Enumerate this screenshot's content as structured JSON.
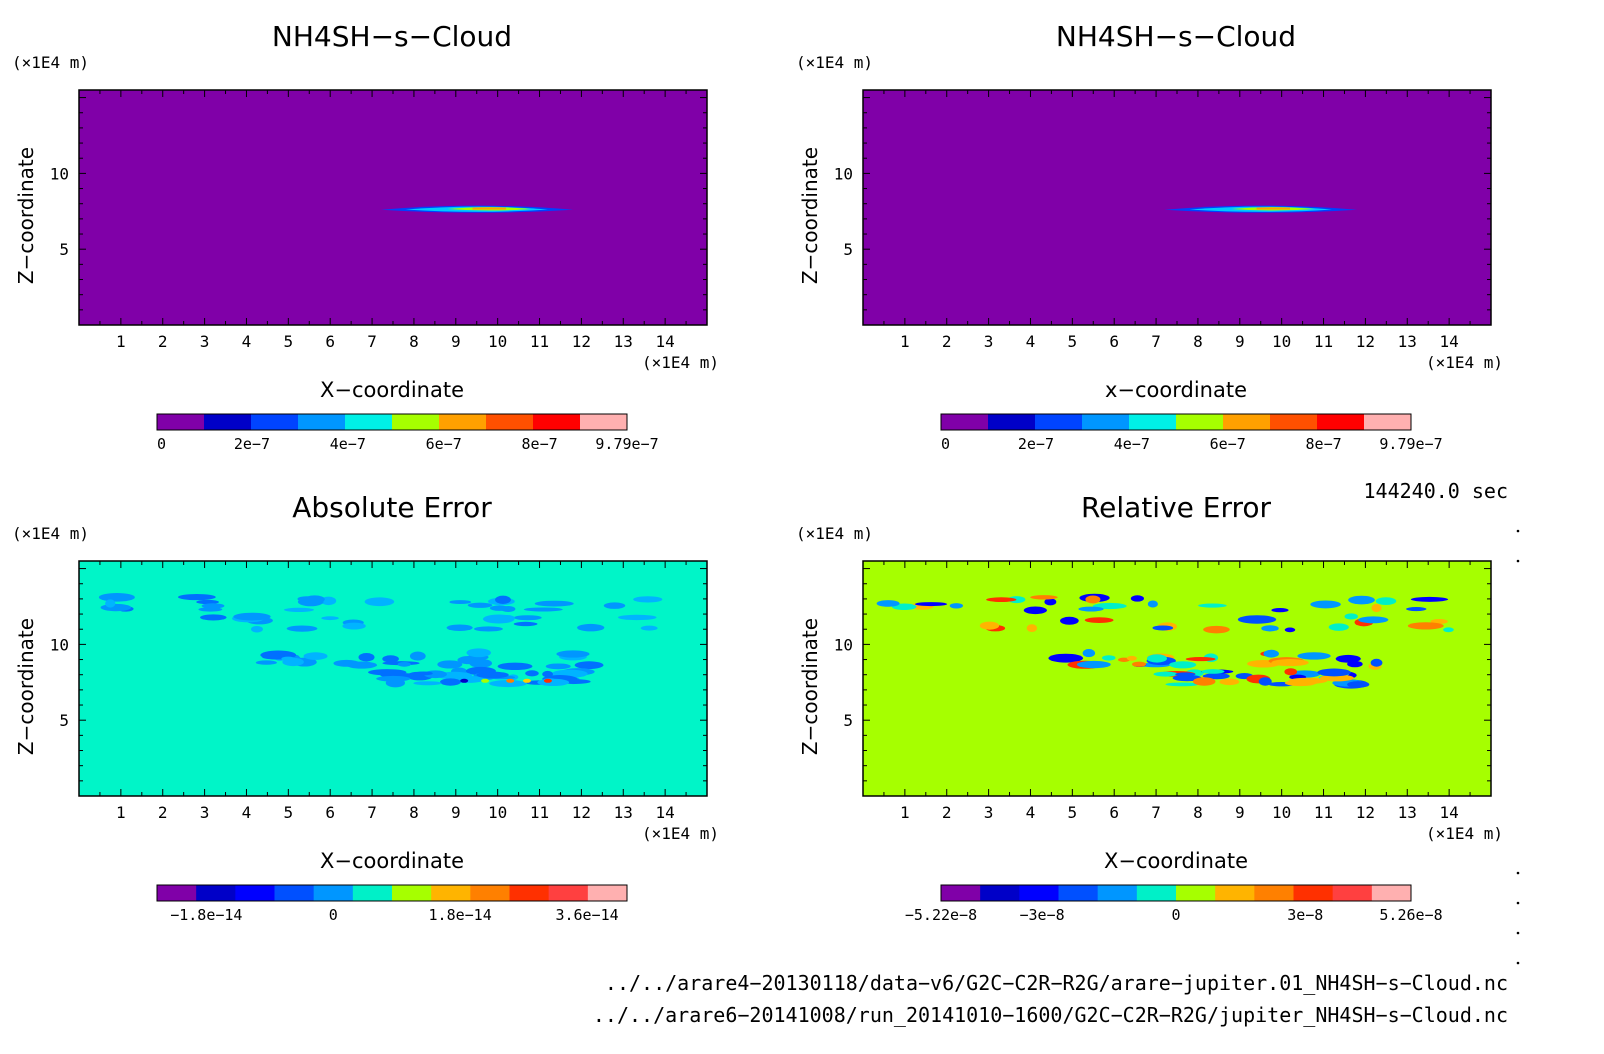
{
  "chart_data": [
    {
      "type": "heatmap",
      "title": "NH4SH−s−Cloud",
      "xlabel": "X−coordinate",
      "ylabel": "Z−coordinate",
      "unit_y": "(×1E4 m)",
      "unit_x": "(×1E4 m)",
      "x_ticks": [
        "1",
        "2",
        "3",
        "4",
        "5",
        "6",
        "7",
        "8",
        "9",
        "10",
        "11",
        "12",
        "13",
        "14"
      ],
      "y_ticks": [
        "10",
        "5"
      ],
      "background_color": "#8000a8",
      "colorbar_labels": [
        "0",
        "2e−7",
        "4e−7",
        "6e−7",
        "8e−7",
        "9.79e−7"
      ],
      "colorbar_colors": [
        "#8000a8",
        "#0000c8",
        "#0044ff",
        "#0096ff",
        "#00f0e6",
        "#a6ff00",
        "#ffa000",
        "#ff5000",
        "#ff0000",
        "#ffb0b0"
      ]
    },
    {
      "type": "heatmap",
      "title": "NH4SH−s−Cloud",
      "xlabel": "x−coordinate",
      "ylabel": "Z−coordinate",
      "unit_y": "(×1E4 m)",
      "unit_x": "(×1E4 m)",
      "x_ticks": [
        "1",
        "2",
        "3",
        "4",
        "5",
        "6",
        "7",
        "8",
        "9",
        "10",
        "11",
        "12",
        "13",
        "14"
      ],
      "y_ticks": [
        "10",
        "5"
      ],
      "background_color": "#8000a8",
      "colorbar_labels": [
        "0",
        "2e−7",
        "4e−7",
        "6e−7",
        "8e−7",
        "9.79e−7"
      ],
      "colorbar_colors": [
        "#8000a8",
        "#0000c8",
        "#0044ff",
        "#0096ff",
        "#00f0e6",
        "#a6ff00",
        "#ffa000",
        "#ff5000",
        "#ff0000",
        "#ffb0b0"
      ]
    },
    {
      "type": "heatmap",
      "title": "Absolute Error",
      "xlabel": "X−coordinate",
      "ylabel": "Z−coordinate",
      "unit_y": "(×1E4 m)",
      "unit_x": "(×1E4 m)",
      "x_ticks": [
        "1",
        "2",
        "3",
        "4",
        "5",
        "6",
        "7",
        "8",
        "9",
        "10",
        "11",
        "12",
        "13",
        "14"
      ],
      "y_ticks": [
        "10",
        "5"
      ],
      "background_color": "#00f5c8",
      "colorbar_labels": [
        "−1.8e−14",
        "0",
        "1.8e−14",
        "3.6e−14"
      ],
      "colorbar_colors": [
        "#8000a8",
        "#0000c8",
        "#0000ff",
        "#0050ff",
        "#0096ff",
        "#00f0c8",
        "#a6ff00",
        "#ffb400",
        "#ff8000",
        "#ff3000",
        "#ff4040",
        "#ffb0b0"
      ]
    },
    {
      "type": "heatmap",
      "title": "Relative Error",
      "xlabel": "X−coordinate",
      "ylabel": "Z−coordinate",
      "unit_y": "(×1E4 m)",
      "unit_x": "(×1E4 m)",
      "x_ticks": [
        "1",
        "2",
        "3",
        "4",
        "5",
        "6",
        "7",
        "8",
        "9",
        "10",
        "11",
        "12",
        "13",
        "14"
      ],
      "y_ticks": [
        "10",
        "5"
      ],
      "background_color": "#a6ff00",
      "colorbar_labels": [
        "−5.22e−8",
        "−3e−8",
        "0",
        "3e−8",
        "5.26e−8"
      ],
      "colorbar_colors": [
        "#8000a8",
        "#0000c8",
        "#0000ff",
        "#0050ff",
        "#0096ff",
        "#00f0c8",
        "#a6ff00",
        "#ffb400",
        "#ff8000",
        "#ff3000",
        "#ff4040",
        "#ffb0b0"
      ]
    }
  ],
  "time_label": "144240.0 sec",
  "file_paths": [
    "../../arare4−20130118/data−v6/G2C−C2R−R2G/arare−jupiter.01_NH4SH−s−Cloud.nc",
    "../../arare6−20141008/run_20141010−1600/G2C−C2R−R2G/jupiter_NH4SH−s−Cloud.nc"
  ]
}
